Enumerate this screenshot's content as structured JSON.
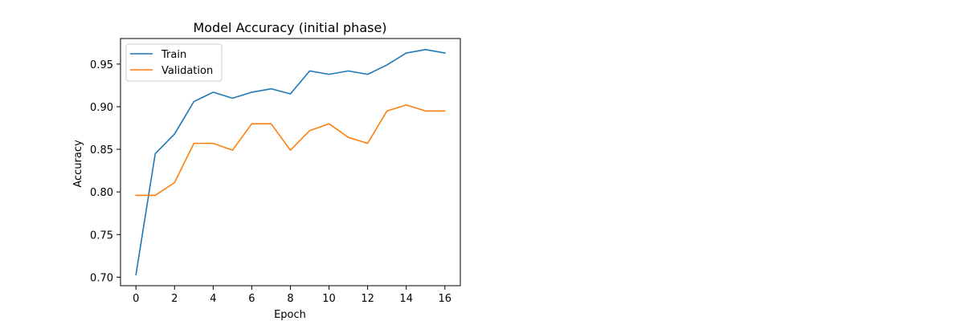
{
  "chart_data": {
    "type": "line",
    "title": "Model Accuracy (initial phase)",
    "xlabel": "Epoch",
    "ylabel": "Accuracy",
    "x": [
      0,
      1,
      2,
      3,
      4,
      5,
      6,
      7,
      8,
      9,
      10,
      11,
      12,
      13,
      14,
      15,
      16
    ],
    "xticks": [
      "0",
      "2",
      "4",
      "6",
      "8",
      "10",
      "12",
      "14",
      "16"
    ],
    "yticks": [
      "0.70",
      "0.75",
      "0.80",
      "0.85",
      "0.90",
      "0.95"
    ],
    "xlim": [
      -0.8,
      16.8
    ],
    "ylim": [
      0.69,
      0.98
    ],
    "legend_position": "top-left",
    "grid": false,
    "series": [
      {
        "name": "Train",
        "color": "#1f77b4",
        "values": [
          0.703,
          0.845,
          0.868,
          0.906,
          0.917,
          0.91,
          0.917,
          0.921,
          0.915,
          0.942,
          0.938,
          0.942,
          0.938,
          0.949,
          0.963,
          0.967,
          0.963
        ]
      },
      {
        "name": "Validation",
        "color": "#ff7f0e",
        "values": [
          0.796,
          0.796,
          0.811,
          0.857,
          0.857,
          0.849,
          0.88,
          0.88,
          0.849,
          0.872,
          0.88,
          0.864,
          0.857,
          0.895,
          0.902,
          0.895,
          0.895
        ]
      }
    ]
  }
}
